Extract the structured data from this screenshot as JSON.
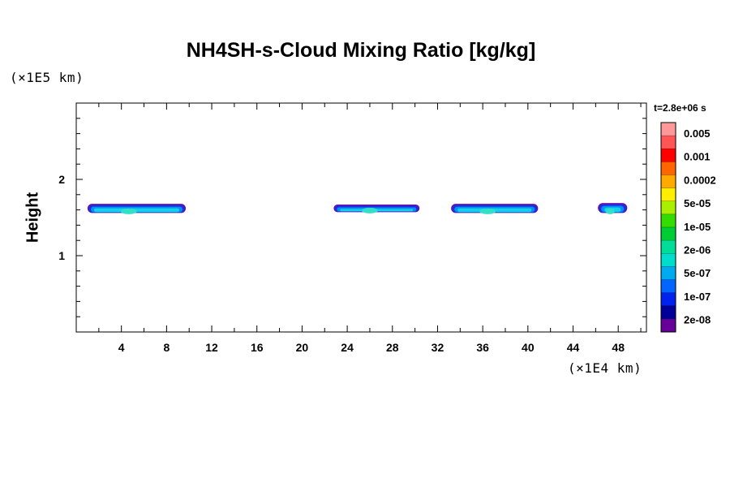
{
  "chart_data": {
    "type": "heatmap",
    "title": "NH4SH-s-Cloud Mixing Ratio [kg/kg]",
    "ylabel": "Height",
    "xlabel": "",
    "x_unit": "(×1E4 km)",
    "y_unit": "(×1E5 km)",
    "time_label": "t=2.8e+06 s",
    "xlim": [
      0,
      50.5
    ],
    "ylim": [
      0,
      3
    ],
    "x_ticks": [
      4,
      8,
      12,
      16,
      20,
      24,
      28,
      32,
      36,
      40,
      44,
      48
    ],
    "y_ticks": [
      1,
      2
    ],
    "colorbar": {
      "labels": [
        "0.005",
        "0.001",
        "0.0002",
        "5e-05",
        "1e-05",
        "2e-06",
        "5e-07",
        "1e-07",
        "2e-08"
      ],
      "colors": [
        "#ff9999",
        "#ff5555",
        "#ff0000",
        "#ff6600",
        "#ffaa00",
        "#ffee00",
        "#aaee00",
        "#33dd00",
        "#00cc33",
        "#00dd99",
        "#00ddcc",
        "#00aaee",
        "#0066ff",
        "#0022ee",
        "#000099",
        "#660099"
      ]
    },
    "cloud_bands": [
      {
        "x_start": 1.0,
        "x_end": 9.7,
        "y_bottom": 1.56,
        "y_top": 1.68
      },
      {
        "x_start": 22.8,
        "x_end": 30.4,
        "y_bottom": 1.57,
        "y_top": 1.67
      },
      {
        "x_start": 33.2,
        "x_end": 40.9,
        "y_bottom": 1.56,
        "y_top": 1.68
      },
      {
        "x_start": 46.2,
        "x_end": 48.8,
        "y_bottom": 1.56,
        "y_top": 1.69
      }
    ]
  }
}
